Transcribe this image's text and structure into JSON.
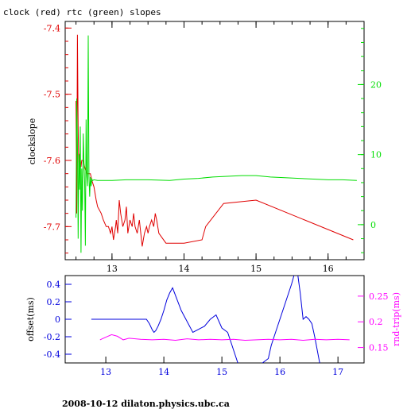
{
  "title": "clock (red) rtc (green) slopes",
  "footer": "2008-10-12  dilaton.physics.ubc.ca",
  "colors": {
    "red": "#e00000",
    "green": "#00dd00",
    "blue": "#0000dd",
    "magenta": "#ff00ff",
    "axis": "#000000"
  },
  "chart_data": [
    {
      "type": "line",
      "ylabel": "clockslope",
      "xlim": [
        12.35,
        16.5
      ],
      "ylim": [
        -7.75,
        -7.39
      ],
      "y2lim": [
        -5.0,
        29.0
      ],
      "xticks": [
        "13",
        "14",
        "15",
        "16"
      ],
      "yticks": [
        "-7.4",
        "-7.5",
        "-7.6",
        "-7.7"
      ],
      "y2ticks": [
        "0",
        "10",
        "20"
      ],
      "series": [
        {
          "color": "red",
          "axis": "left",
          "x": [
            12.5,
            12.51,
            12.52,
            12.53,
            12.54,
            12.55,
            12.56,
            12.57,
            12.58,
            12.6,
            12.62,
            12.65,
            12.7,
            12.72,
            12.75,
            12.78,
            12.8,
            12.85,
            12.88,
            12.92,
            12.95,
            12.98,
            13.0,
            13.02,
            13.05,
            13.06,
            13.08,
            13.1,
            13.12,
            13.15,
            13.18,
            13.2,
            13.22,
            13.25,
            13.28,
            13.3,
            13.32,
            13.35,
            13.38,
            13.4,
            13.42,
            13.45,
            13.48,
            13.5,
            13.52,
            13.55,
            13.58,
            13.6,
            13.62,
            13.65,
            13.75,
            14.0,
            14.25,
            14.3,
            14.55,
            15.0,
            16.35
          ],
          "y": [
            -7.51,
            -7.68,
            -7.41,
            -7.55,
            -7.62,
            -7.59,
            -7.6,
            -7.61,
            -7.6,
            -7.6,
            -7.61,
            -7.62,
            -7.62,
            -7.63,
            -7.64,
            -7.66,
            -7.67,
            -7.68,
            -7.69,
            -7.7,
            -7.7,
            -7.71,
            -7.7,
            -7.72,
            -7.7,
            -7.69,
            -7.71,
            -7.66,
            -7.68,
            -7.7,
            -7.69,
            -7.67,
            -7.71,
            -7.69,
            -7.7,
            -7.68,
            -7.7,
            -7.71,
            -7.69,
            -7.71,
            -7.73,
            -7.71,
            -7.7,
            -7.71,
            -7.7,
            -7.69,
            -7.7,
            -7.68,
            -7.69,
            -7.71,
            -7.725,
            -7.725,
            -7.72,
            -7.7,
            -7.665,
            -7.66,
            -7.72
          ]
        },
        {
          "color": "green",
          "axis": "right",
          "x": [
            12.5,
            12.51,
            12.52,
            12.53,
            12.54,
            12.55,
            12.56,
            12.57,
            12.58,
            12.59,
            12.6,
            12.61,
            12.62,
            12.63,
            12.64,
            12.65,
            12.66,
            12.67,
            12.68,
            12.69,
            12.7,
            12.71,
            12.72,
            12.73,
            12.75,
            12.8,
            13.0,
            13.2,
            13.5,
            13.8,
            14.0,
            14.2,
            14.4,
            14.6,
            14.8,
            15.0,
            15.2,
            15.4,
            15.6,
            15.8,
            16.0,
            16.2,
            16.4
          ],
          "y": [
            1.0,
            18.0,
            12.0,
            -2.0,
            10.0,
            5.0,
            14.0,
            -4.0,
            8.0,
            2.0,
            13.0,
            9.0,
            6.0,
            -3.0,
            15.0,
            7.0,
            5.5,
            27.0,
            7.0,
            4.0,
            6.8,
            5.5,
            6.5,
            6.3,
            6.4,
            6.3,
            6.3,
            6.4,
            6.4,
            6.3,
            6.5,
            6.6,
            6.8,
            6.9,
            7.0,
            7.0,
            6.8,
            6.7,
            6.6,
            6.5,
            6.4,
            6.4,
            6.3
          ]
        }
      ]
    },
    {
      "type": "line",
      "ylabel": "offset(ms)",
      "y2label": "rnd-trip(ms)",
      "xlim": [
        12.3,
        17.45
      ],
      "ylim": [
        -0.5,
        0.5
      ],
      "y2lim": [
        0.12,
        0.29
      ],
      "xticks": [
        "13",
        "14",
        "15",
        "16",
        "17"
      ],
      "yticks": [
        "0.4",
        "0.2",
        "0",
        "-0.2",
        "-0.4"
      ],
      "y2ticks": [
        "0.25",
        "0.2",
        "0.15"
      ],
      "series": [
        {
          "color": "blue",
          "axis": "left",
          "x": [
            12.75,
            13.0,
            13.3,
            13.6,
            13.7,
            13.75,
            13.8,
            13.83,
            13.86,
            13.9,
            13.95,
            14.0,
            14.05,
            14.1,
            14.15,
            14.3,
            14.5,
            14.7,
            14.8,
            14.9,
            15.0,
            15.1,
            15.15,
            15.2,
            15.3,
            15.4,
            15.6,
            15.8,
            15.85,
            15.9,
            16.0,
            16.1,
            16.2,
            16.25,
            16.3,
            16.35,
            16.4,
            16.45,
            16.5,
            16.55,
            16.6,
            16.7
          ],
          "y": [
            0.0,
            0.0,
            0.0,
            0.0,
            0.0,
            -0.05,
            -0.12,
            -0.15,
            -0.13,
            -0.08,
            0.0,
            0.1,
            0.22,
            0.3,
            0.36,
            0.1,
            -0.15,
            -0.08,
            0.0,
            0.05,
            -0.1,
            -0.15,
            -0.25,
            -0.35,
            -0.55,
            -0.55,
            -0.55,
            -0.45,
            -0.3,
            -0.2,
            0.0,
            0.2,
            0.4,
            0.52,
            0.55,
            0.3,
            0.0,
            0.03,
            0.0,
            -0.05,
            -0.2,
            -0.55
          ]
        },
        {
          "color": "magenta",
          "axis": "right",
          "x": [
            12.9,
            13.0,
            13.1,
            13.2,
            13.3,
            13.4,
            13.6,
            13.8,
            14.0,
            14.2,
            14.4,
            14.6,
            14.8,
            15.0,
            15.2,
            15.4,
            15.6,
            15.8,
            16.0,
            16.2,
            16.4,
            16.6,
            16.8,
            17.0,
            17.2
          ],
          "y": [
            0.165,
            0.17,
            0.175,
            0.172,
            0.165,
            0.168,
            0.166,
            0.165,
            0.166,
            0.164,
            0.167,
            0.165,
            0.166,
            0.165,
            0.166,
            0.164,
            0.165,
            0.166,
            0.165,
            0.166,
            0.164,
            0.166,
            0.165,
            0.166,
            0.165
          ]
        }
      ]
    }
  ]
}
